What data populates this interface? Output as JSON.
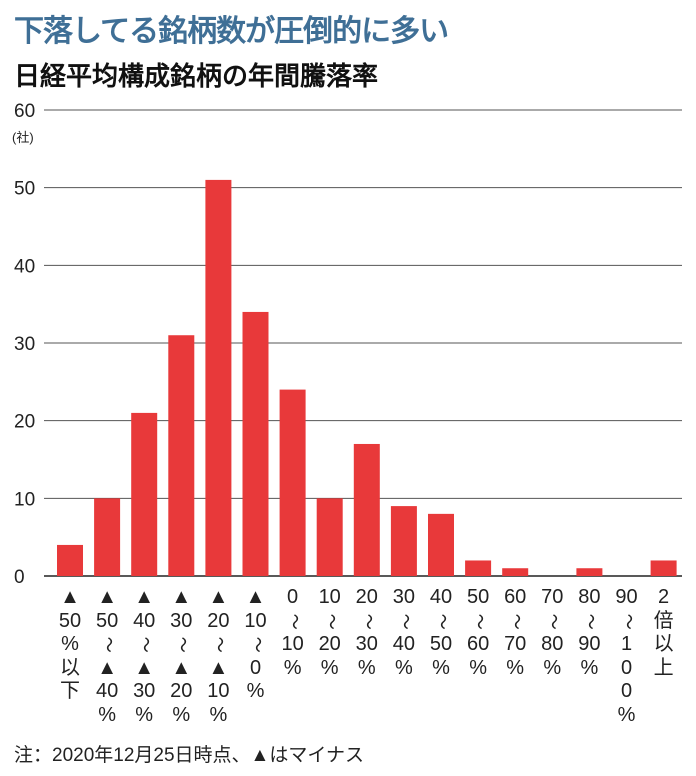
{
  "chart_data": {
    "type": "bar",
    "title": "下落してる銘柄数が圧倒的に多い",
    "subtitle": "日経平均構成銘柄の年間騰落率",
    "ylabel": "(社)",
    "ylim": [
      0,
      60
    ],
    "yticks": [
      0,
      10,
      20,
      30,
      40,
      50,
      60
    ],
    "grid": true,
    "bar_color": "#e8393a",
    "title_color": "#3f6f96",
    "categories": [
      [
        "▲",
        "50",
        "%",
        "以",
        "下"
      ],
      [
        "▲",
        "50",
        "〜",
        "▲",
        "40",
        "%"
      ],
      [
        "▲",
        "40",
        "〜",
        "▲",
        "30",
        "%"
      ],
      [
        "▲",
        "30",
        "〜",
        "▲",
        "20",
        "%"
      ],
      [
        "▲",
        "20",
        "〜",
        "▲",
        "10",
        "%"
      ],
      [
        "▲",
        "10",
        "〜",
        "0",
        "%"
      ],
      [
        "0",
        "〜",
        "10",
        "%"
      ],
      [
        "10",
        "〜",
        "20",
        "%"
      ],
      [
        "20",
        "〜",
        "30",
        "%"
      ],
      [
        "30",
        "〜",
        "40",
        "%"
      ],
      [
        "40",
        "〜",
        "50",
        "%"
      ],
      [
        "50",
        "〜",
        "60",
        "%"
      ],
      [
        "60",
        "〜",
        "70",
        "%"
      ],
      [
        "70",
        "〜",
        "80",
        "%"
      ],
      [
        "80",
        "〜",
        "90",
        "%"
      ],
      [
        "90",
        "〜",
        "1",
        "0",
        "0",
        "%"
      ],
      [
        "2",
        "倍",
        "以",
        "上"
      ]
    ],
    "values": [
      4,
      10,
      21,
      31,
      51,
      34,
      24,
      10,
      17,
      9,
      8,
      2,
      1,
      0,
      1,
      0,
      2
    ],
    "note": "注：2020年12月25日時点、▲はマイナス"
  }
}
